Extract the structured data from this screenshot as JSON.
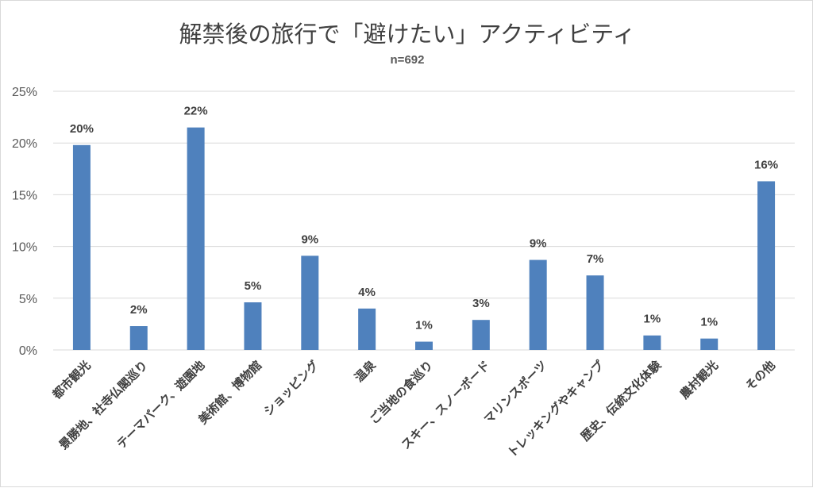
{
  "chart_data": {
    "type": "bar",
    "title": "解禁後の旅行で「避けたい」アクティビティ",
    "subtitle": "n=692",
    "categories": [
      "都市観光",
      "景勝地、社寺仏閣巡り",
      "テーマパーク、遊園地",
      "美術館、博物館",
      "ショッピング",
      "温泉",
      "ご当地の食巡り",
      "スキー、スノーボード",
      "マリンスポーツ",
      "トレッキングやキャンプ",
      "歴史、伝統文化体験",
      "農村観光",
      "その他"
    ],
    "values": [
      19.8,
      2.3,
      21.5,
      4.6,
      9.1,
      4.0,
      0.8,
      2.9,
      8.7,
      7.2,
      1.4,
      1.1,
      16.3
    ],
    "data_labels": [
      "20%",
      "2%",
      "22%",
      "5%",
      "9%",
      "4%",
      "1%",
      "3%",
      "9%",
      "7%",
      "1%",
      "1%",
      "16%"
    ],
    "ylim": [
      0,
      25
    ],
    "yticks": [
      0,
      5,
      10,
      15,
      20,
      25
    ],
    "ytick_labels": [
      "0%",
      "5%",
      "10%",
      "15%",
      "20%",
      "25%"
    ],
    "xlabel": "",
    "ylabel": "",
    "grid": true,
    "legend": "none",
    "bar_color": "#4f81bd",
    "grid_color": "#d9d9d9"
  }
}
